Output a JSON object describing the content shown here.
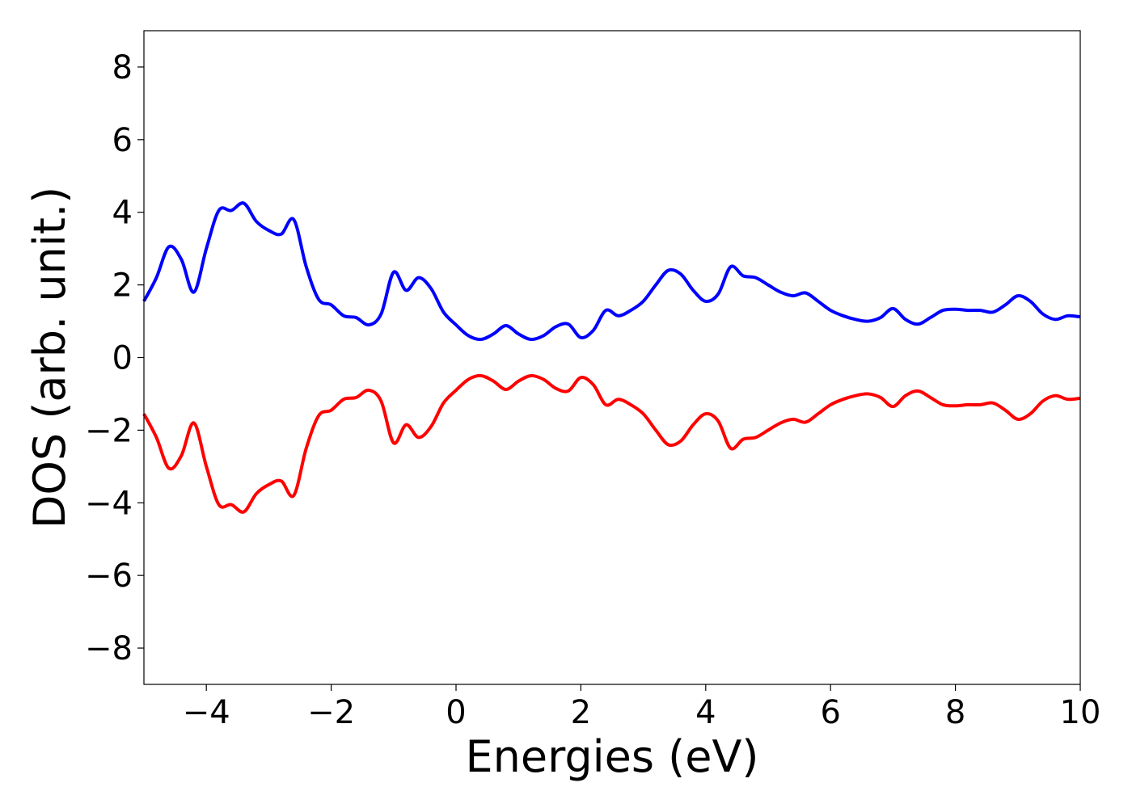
{
  "chart_data": {
    "type": "line",
    "title": "",
    "xlabel": "Energies (eV)",
    "ylabel": "DOS (arb. unit.)",
    "xlim": [
      -5,
      10
    ],
    "ylim": [
      -9,
      9
    ],
    "grid": false,
    "legend": "none",
    "x_ticks": [
      -4,
      -2,
      0,
      2,
      4,
      6,
      8,
      10
    ],
    "x_tick_labels": [
      "−4",
      "−2",
      "0",
      "2",
      "4",
      "6",
      "8",
      "10"
    ],
    "y_ticks": [
      -8,
      -6,
      -4,
      -2,
      0,
      2,
      4,
      6,
      8
    ],
    "y_tick_labels": [
      "−8",
      "−6",
      "−4",
      "−2",
      "0",
      "2",
      "4",
      "6",
      "8"
    ],
    "x": [
      -5.0,
      -4.8,
      -4.6,
      -4.4,
      -4.2,
      -4.0,
      -3.8,
      -3.6,
      -3.4,
      -3.2,
      -3.0,
      -2.8,
      -2.6,
      -2.4,
      -2.2,
      -2.0,
      -1.8,
      -1.6,
      -1.4,
      -1.2,
      -1.0,
      -0.8,
      -0.6,
      -0.4,
      -0.2,
      0.0,
      0.2,
      0.4,
      0.6,
      0.8,
      1.0,
      1.2,
      1.4,
      1.6,
      1.8,
      2.0,
      2.2,
      2.4,
      2.6,
      2.8,
      3.0,
      3.2,
      3.4,
      3.6,
      3.8,
      4.0,
      4.2,
      4.4,
      4.6,
      4.8,
      5.0,
      5.2,
      5.4,
      5.6,
      5.8,
      6.0,
      6.2,
      6.4,
      6.6,
      6.8,
      7.0,
      7.2,
      7.4,
      7.6,
      7.8,
      8.0,
      8.2,
      8.4,
      8.6,
      8.8,
      9.0,
      9.2,
      9.4,
      9.6,
      9.8,
      10.0
    ],
    "series": [
      {
        "color": "#0000ff",
        "values": [
          1.55,
          2.2,
          3.05,
          2.7,
          1.8,
          3.0,
          4.05,
          4.05,
          4.25,
          3.75,
          3.5,
          3.4,
          3.8,
          2.5,
          1.6,
          1.45,
          1.15,
          1.1,
          0.9,
          1.2,
          2.35,
          1.85,
          2.2,
          1.9,
          1.25,
          0.9,
          0.6,
          0.5,
          0.65,
          0.88,
          0.65,
          0.5,
          0.6,
          0.85,
          0.92,
          0.55,
          0.75,
          1.3,
          1.15,
          1.3,
          1.55,
          2.0,
          2.4,
          2.3,
          1.85,
          1.55,
          1.75,
          2.5,
          2.25,
          2.2,
          2.0,
          1.8,
          1.7,
          1.78,
          1.55,
          1.3,
          1.15,
          1.05,
          1.0,
          1.1,
          1.35,
          1.05,
          0.92,
          1.1,
          1.3,
          1.33,
          1.3,
          1.3,
          1.25,
          1.45,
          1.7,
          1.55,
          1.2,
          1.05,
          1.15,
          1.12
        ]
      },
      {
        "color": "#ff0000",
        "values": [
          -1.55,
          -2.2,
          -3.05,
          -2.7,
          -1.8,
          -3.0,
          -4.05,
          -4.05,
          -4.25,
          -3.75,
          -3.5,
          -3.4,
          -3.8,
          -2.5,
          -1.6,
          -1.45,
          -1.15,
          -1.1,
          -0.9,
          -1.2,
          -2.35,
          -1.85,
          -2.2,
          -1.9,
          -1.25,
          -0.9,
          -0.6,
          -0.5,
          -0.65,
          -0.88,
          -0.65,
          -0.5,
          -0.6,
          -0.85,
          -0.92,
          -0.55,
          -0.75,
          -1.3,
          -1.15,
          -1.3,
          -1.55,
          -2.0,
          -2.4,
          -2.3,
          -1.85,
          -1.55,
          -1.75,
          -2.5,
          -2.25,
          -2.2,
          -2.0,
          -1.8,
          -1.7,
          -1.78,
          -1.55,
          -1.3,
          -1.15,
          -1.05,
          -1.0,
          -1.1,
          -1.35,
          -1.05,
          -0.92,
          -1.1,
          -1.3,
          -1.33,
          -1.3,
          -1.3,
          -1.25,
          -1.45,
          -1.7,
          -1.55,
          -1.2,
          -1.05,
          -1.15,
          -1.12
        ]
      }
    ]
  }
}
